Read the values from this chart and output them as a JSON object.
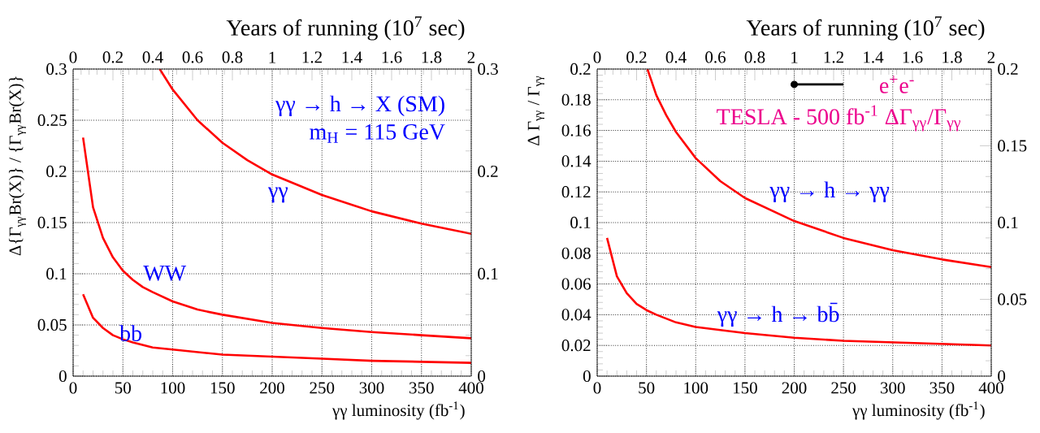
{
  "chart_data": [
    {
      "type": "line",
      "xlabel": "γγ luminosity (fb$^{-1}$)",
      "ylabel": "Δ{Γ$_{γγ}$Br(X)} / {Γ$_{γγ}$Br(X)}",
      "x2label": "Years of running  (10$^{7}$ sec)",
      "xlim": [
        0,
        400
      ],
      "xticks": [
        0,
        50,
        100,
        150,
        200,
        250,
        300,
        350,
        400
      ],
      "ylim": [
        0,
        0.3
      ],
      "yticks": [
        0,
        0.05,
        0.1,
        0.15,
        0.2,
        0.25,
        0.3
      ],
      "x2lim": [
        0,
        2
      ],
      "x2ticks": [
        0,
        0.2,
        0.4,
        0.6,
        0.8,
        1,
        1.2,
        1.4,
        1.6,
        1.8,
        2
      ],
      "y2lim": [
        0,
        0.3
      ],
      "y2ticks": [
        0,
        0.1,
        0.2,
        0.3
      ],
      "grid": true,
      "series": [
        {
          "color": "#ff0000",
          "x": [
            87,
            100,
            125,
            150,
            175,
            200,
            250,
            300,
            350,
            400
          ],
          "values": [
            0.3,
            0.28,
            0.25,
            0.228,
            0.211,
            0.197,
            0.177,
            0.161,
            0.149,
            0.139
          ]
        },
        {
          "color": "#ff0000",
          "x": [
            10,
            20,
            30,
            40,
            50,
            60,
            70,
            80,
            100,
            125,
            150,
            200,
            250,
            300,
            350,
            400
          ],
          "values": [
            0.233,
            0.165,
            0.135,
            0.116,
            0.103,
            0.094,
            0.087,
            0.082,
            0.073,
            0.065,
            0.06,
            0.052,
            0.047,
            0.043,
            0.04,
            0.037
          ]
        },
        {
          "color": "#ff0000",
          "x": [
            10,
            20,
            30,
            40,
            50,
            60,
            80,
            100,
            150,
            200,
            250,
            300,
            350,
            400
          ],
          "values": [
            0.08,
            0.057,
            0.047,
            0.04,
            0.036,
            0.033,
            0.028,
            0.026,
            0.021,
            0.019,
            0.017,
            0.015,
            0.014,
            0.013
          ]
        }
      ],
      "annotations": [
        "γγ → h → X (SM)",
        "m$_{H}$ = 115 GeV",
        "γγ",
        "WW",
        "bb"
      ]
    },
    {
      "type": "line",
      "xlabel": "γγ luminosity (fb$^{-1}$)",
      "ylabel": "Δ Γ$_{γγ}$ / Γ$_{γγ}$",
      "x2label": "Years of running  (10$^{7}$ sec)",
      "xlim": [
        0,
        400
      ],
      "xticks": [
        0,
        50,
        100,
        150,
        200,
        250,
        300,
        350,
        400
      ],
      "ylim": [
        0,
        0.2
      ],
      "yticks": [
        0,
        0.02,
        0.04,
        0.06,
        0.08,
        0.1,
        0.12,
        0.14,
        0.16,
        0.18,
        0.2
      ],
      "x2lim": [
        0,
        2
      ],
      "x2ticks": [
        0,
        0.2,
        0.4,
        0.6,
        0.8,
        1,
        1.2,
        1.4,
        1.6,
        1.8,
        2
      ],
      "y2lim": [
        0,
        0.2
      ],
      "y2ticks": [
        0,
        0.05,
        0.1,
        0.15,
        0.2
      ],
      "grid": true,
      "series": [
        {
          "color": "#ff0000",
          "x": [
            51,
            60,
            70,
            80,
            100,
            125,
            150,
            200,
            250,
            300,
            350,
            400
          ],
          "values": [
            0.2,
            0.183,
            0.17,
            0.159,
            0.142,
            0.127,
            0.116,
            0.101,
            0.09,
            0.082,
            0.076,
            0.071
          ]
        },
        {
          "color": "#ff0000",
          "x": [
            10,
            20,
            30,
            40,
            50,
            60,
            80,
            100,
            150,
            200,
            250,
            300,
            350,
            400
          ],
          "values": [
            0.09,
            0.065,
            0.054,
            0.047,
            0.043,
            0.04,
            0.035,
            0.032,
            0.028,
            0.025,
            0.023,
            0.022,
            0.021,
            0.02
          ]
        },
        {
          "color": "#000000",
          "marker": "circle",
          "x": [
            200,
            250
          ],
          "values": [
            0.19,
            0.19
          ]
        }
      ],
      "annotations": [
        "e$^{+}$e$^{-}$",
        "TESLA - 500 fb$^{-1}$ ΔΓ$_{γγ}$/Γ$_{γγ}$",
        "γγ → h → γγ",
        "γγ → h → bb̄"
      ]
    }
  ]
}
